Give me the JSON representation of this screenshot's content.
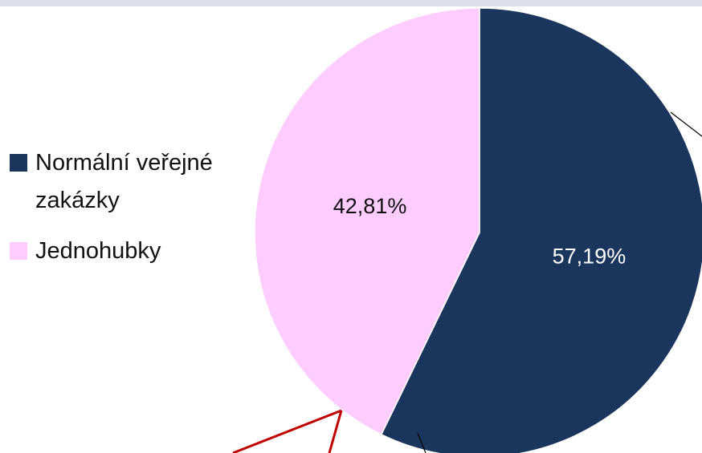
{
  "chart_data": {
    "type": "pie",
    "series": [
      {
        "name": "Normální veřejné zakázky",
        "color": "#1b365d",
        "values": [
          57.19
        ],
        "value_labels": [
          "57,19%"
        ]
      },
      {
        "name": "Jednohubky",
        "color": "#ffccff",
        "values": [
          42.81
        ],
        "value_labels": [
          "42,81%"
        ]
      }
    ]
  }
}
